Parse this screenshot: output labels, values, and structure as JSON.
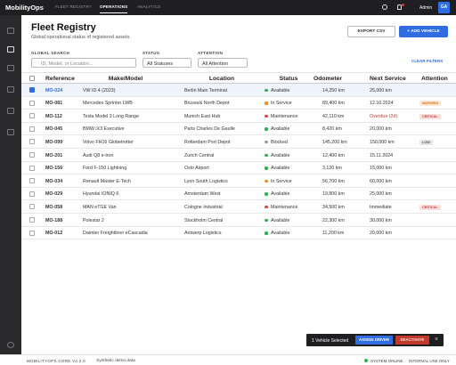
{
  "topbar": {
    "logo": "MobilityOps",
    "nav": [
      "FLEET REGISTRY",
      "OPERATIONS",
      "ANALYTICS"
    ],
    "user": "Admin",
    "avatar": "GA"
  },
  "header": {
    "title": "Fleet Registry",
    "subtitle": "Global operational status of registered assets.",
    "export": "EXPORT CSV",
    "add": "+ ADD VEHICLE"
  },
  "filters": {
    "search_label": "GLOBAL SEARCH",
    "search_placeholder": "ID, Model, or Location...",
    "status_label": "STATUS",
    "status_value": "All Statuses",
    "attention_label": "ATTENTION",
    "attention_value": "All Attention",
    "clear": "CLEAR FILTERS"
  },
  "table": {
    "columns": [
      "Reference",
      "Make/Model",
      "Location",
      "Status",
      "Odometer",
      "Next Service",
      "Attention"
    ],
    "rows": [
      {
        "ref": "MO-024",
        "model": "VW ID.4 (2023)",
        "location": "Berlin Main Terminal",
        "status": "Available",
        "odometer": "14,250 km",
        "next_service": "25,000 km"
      },
      {
        "ref": "MO-081",
        "model": "Mercedes Sprinter LWB",
        "location": "Brussels North Depot",
        "status": "In Service",
        "odometer": "89,400 km",
        "next_service": "12.10.2024",
        "attention": "WARNING"
      },
      {
        "ref": "MO-112",
        "model": "Tesla Model 3 Long Range",
        "location": "Munich East Hub",
        "status": "Maintenance",
        "odometer": "42,110 km",
        "next_service": "Overdue (2d)",
        "attention": "CRITICAL"
      },
      {
        "ref": "MO-045",
        "model": "BMW iX3 Executive",
        "location": "Paris Charles De Gaulle",
        "status": "Available",
        "odometer": "8,420 km",
        "next_service": "20,000 km"
      },
      {
        "ref": "MO-099",
        "model": "Volvo FH16 Globetrotter",
        "location": "Rotterdam Port Depot",
        "status": "Blocked",
        "odometer": "145,200 km",
        "next_service": "150,000 km",
        "attention": "LOW"
      },
      {
        "ref": "MO-201",
        "model": "Audi Q8 e-tron",
        "location": "Zurich Central",
        "status": "Available",
        "odometer": "12,400 km",
        "next_service": "15.11.2024"
      },
      {
        "ref": "MO-156",
        "model": "Ford F-150 Lightning",
        "location": "Oslo Airport",
        "status": "Available",
        "odometer": "3,120 km",
        "next_service": "15,000 km"
      },
      {
        "ref": "MO-034",
        "model": "Renault Master E-Tech",
        "location": "Lyon South Logistics",
        "status": "In Service",
        "odometer": "56,700 km",
        "next_service": "60,000 km"
      },
      {
        "ref": "MO-029",
        "model": "Hyundai IONIQ 6",
        "location": "Amsterdam West",
        "status": "Available",
        "odometer": "19,800 km",
        "next_service": "25,000 km"
      },
      {
        "ref": "MO-058",
        "model": "MAN eTGE Van",
        "location": "Cologne Industrial",
        "status": "Maintenance",
        "odometer": "34,500 km",
        "next_service": "Immediate",
        "attention": "CRITICAL"
      },
      {
        "ref": "MO-188",
        "model": "Polestar 2",
        "location": "Stockholm Central",
        "status": "Available",
        "odometer": "22,300 km",
        "next_service": "30,000 km"
      },
      {
        "ref": "MO-012",
        "model": "Daimler Freightliner eCascadia",
        "location": "Antwerp Logistics",
        "status": "Available",
        "odometer": "11,200 km",
        "next_service": "20,000 km"
      }
    ]
  },
  "selection_bar": {
    "text": "1 Vehicle Selected",
    "assign": "ASSIGN DRIVER",
    "deactivate": "DEACTIVATE"
  },
  "footer": {
    "version": "MOBILITYOPS CORE V4.2.0",
    "note": "Synthetic demo data",
    "status": "SYSTEM ONLINE",
    "usage": "INTERNAL USE ONLY"
  }
}
